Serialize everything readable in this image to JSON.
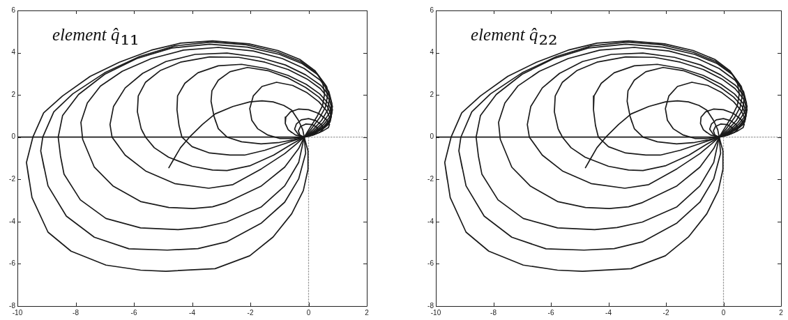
{
  "chart_data": [
    {
      "type": "line",
      "title": "element q̂₁₁",
      "xlim": [
        -10,
        2
      ],
      "xticks": [
        -10,
        -8,
        -6,
        -4,
        -2,
        0,
        2
      ],
      "ylim": [
        -8,
        6
      ],
      "yticks": [
        -8,
        -6,
        -4,
        -2,
        0,
        2,
        4,
        6
      ],
      "grid": false,
      "legend": false,
      "marker": "none",
      "line_style": "solid",
      "series": [
        {
          "color": "#1a1a1a",
          "x": [
            -9.69,
            -9.5,
            -8.95,
            -8.16,
            -6.96,
            -5.77,
            -4.9,
            -3.21,
            -2.02,
            -1.22,
            -0.58,
            -0.18,
            -0.02,
            -0.02,
            -0.15,
            0.05,
            0.3,
            0.48,
            0.55,
            0.48,
            0.22,
            -0.3,
            -1.05,
            -2.05,
            -3.3,
            -4.4,
            -5.4,
            -6.5,
            -7.5,
            -8.45,
            -9.1,
            -9.47,
            -9.69,
            -9.6
          ],
          "values": [
            -1.2,
            -2.86,
            -4.5,
            -5.4,
            -6.06,
            -6.3,
            -6.35,
            -6.23,
            -5.62,
            -4.73,
            -3.63,
            -2.53,
            -1.53,
            -0.65,
            0,
            0.45,
            1.0,
            1.5,
            2.05,
            2.6,
            3.15,
            3.68,
            4.1,
            4.42,
            4.56,
            4.45,
            4.12,
            3.55,
            2.88,
            1.95,
            1.15,
            0,
            -1.2,
            -2.03
          ]
        },
        {
          "color": "#1a1a1a",
          "x": [
            -9.2,
            -8.95,
            -8.32,
            -7.36,
            -6.17,
            -4.85,
            -3.8,
            -2.82,
            -1.62,
            -0.82,
            -0.34,
            -0.1,
            -0.15,
            0.1,
            0.38,
            0.58,
            0.65,
            0.56,
            0.27,
            -0.27,
            -1.05,
            -2.15,
            -3.35,
            -4.6,
            -5.8,
            -7.0,
            -8.1,
            -8.75,
            -9.13,
            -9.2,
            -9.08
          ],
          "values": [
            -0.65,
            -2.31,
            -3.74,
            -4.74,
            -5.29,
            -5.35,
            -5.28,
            -4.96,
            -4.07,
            -3.08,
            -1.98,
            -0.76,
            0,
            0.4,
            0.92,
            1.42,
            1.95,
            2.5,
            3.05,
            3.58,
            4.02,
            4.38,
            4.5,
            4.32,
            3.82,
            3.05,
            2.05,
            1.2,
            0,
            -0.65,
            -1.48
          ]
        },
        {
          "color": "#1a1a1a",
          "x": [
            -8.6,
            -8.52,
            -8.4,
            -7.84,
            -6.96,
            -5.77,
            -4.48,
            -3.7,
            -2.82,
            -1.62,
            -0.82,
            -0.34,
            -0.15,
            0.15,
            0.45,
            0.66,
            0.72,
            0.62,
            0.32,
            -0.22,
            -1.0,
            -2.1,
            -3.4,
            -4.7,
            -5.9,
            -7.0,
            -7.9,
            -8.45,
            -8.6,
            -8.52,
            -8.46
          ],
          "values": [
            0,
            -0.9,
            -1.75,
            -2.97,
            -3.85,
            -4.3,
            -4.38,
            -4.28,
            -4.02,
            -3.3,
            -2.31,
            -1.2,
            0,
            0.35,
            0.8,
            1.3,
            1.85,
            2.4,
            2.95,
            3.48,
            3.92,
            4.26,
            4.4,
            4.22,
            3.72,
            2.98,
            2.02,
            1.02,
            0,
            -0.9,
            -1.32
          ]
        },
        {
          "color": "#1a1a1a",
          "x": [
            -7.82,
            -7.76,
            -7.36,
            -6.72,
            -5.77,
            -4.8,
            -3.97,
            -3.3,
            -2.82,
            -1.62,
            -0.82,
            -0.34,
            -0.15,
            0.18,
            0.5,
            0.72,
            0.8,
            0.7,
            0.4,
            -0.15,
            -0.9,
            -1.9,
            -3.1,
            -4.3,
            -5.4,
            -6.4,
            -7.15,
            -7.6,
            -7.82,
            -7.76,
            -7.56
          ],
          "values": [
            0.7,
            -0.1,
            -1.42,
            -2.31,
            -3.05,
            -3.33,
            -3.38,
            -3.3,
            -3.1,
            -2.31,
            -1.42,
            -0.54,
            0,
            0.3,
            0.7,
            1.15,
            1.6,
            2.15,
            2.7,
            3.25,
            3.72,
            4.08,
            4.25,
            4.12,
            3.72,
            3.12,
            2.42,
            1.62,
            0.7,
            -0.1,
            -0.76
          ]
        },
        {
          "color": "#1a1a1a",
          "x": [
            -6.82,
            -6.75,
            -6.3,
            -5.6,
            -4.6,
            -3.43,
            -2.6,
            -1.62,
            -0.82,
            -0.4,
            -0.15,
            0.2,
            0.52,
            0.75,
            0.82,
            0.72,
            0.42,
            -0.1,
            -0.8,
            -1.7,
            -2.8,
            -3.9,
            -4.9,
            -5.7,
            -6.3,
            -6.7,
            -6.82,
            -6.75,
            -6.52
          ],
          "values": [
            0.6,
            0,
            -0.85,
            -1.6,
            -2.2,
            -2.42,
            -2.25,
            -1.5,
            -0.78,
            -0.3,
            0,
            0.26,
            0.6,
            1.0,
            1.45,
            1.95,
            2.45,
            2.95,
            3.42,
            3.78,
            3.98,
            3.92,
            3.58,
            3.02,
            2.33,
            1.45,
            0.6,
            0,
            -0.43
          ]
        },
        {
          "color": "#1a1a1a",
          "x": [
            -5.88,
            -5.75,
            -5.6,
            -5.3,
            -4.81,
            -4.0,
            -3.3,
            -2.8,
            -2.0,
            -1.2,
            -0.6,
            -0.15,
            0.2,
            0.55,
            0.76,
            0.82,
            0.7,
            0.4,
            -0.05,
            -0.7,
            -1.5,
            -2.4,
            -3.4,
            -4.4,
            -5.1,
            -5.6,
            -5.85,
            -5.88,
            -5.75,
            -5.68
          ],
          "values": [
            1.2,
            0.4,
            0,
            -0.5,
            -0.95,
            -1.38,
            -1.56,
            -1.58,
            -1.35,
            -0.85,
            -0.35,
            0,
            0.24,
            0.54,
            0.9,
            1.3,
            1.8,
            2.3,
            2.75,
            3.2,
            3.55,
            3.78,
            3.8,
            3.55,
            3.15,
            2.6,
            1.95,
            1.2,
            0.4,
            0.2
          ]
        },
        {
          "color": "#1a1a1a",
          "x": [
            -4.52,
            -4.45,
            -4.35,
            -4.0,
            -3.4,
            -2.7,
            -2.2,
            -1.5,
            -0.8,
            -0.15,
            0.2,
            0.55,
            0.75,
            0.8,
            0.68,
            0.38,
            -0.08,
            -0.7,
            -1.45,
            -2.3,
            -3.1,
            -3.8,
            -4.25,
            -4.5,
            -4.52,
            -4.45,
            -4.4
          ],
          "values": [
            1.3,
            0.55,
            0,
            -0.45,
            -0.75,
            -0.85,
            -0.85,
            -0.62,
            -0.3,
            0,
            0.22,
            0.5,
            0.82,
            1.15,
            1.6,
            2.05,
            2.5,
            2.92,
            3.25,
            3.45,
            3.38,
            3.05,
            2.55,
            1.95,
            1.3,
            0.55,
            0.28
          ]
        },
        {
          "color": "#1a1a1a",
          "x": [
            -3.35,
            -3.25,
            -3.1,
            -2.8,
            -2.3,
            -1.63,
            -1.0,
            -0.5,
            -0.15,
            0.2,
            0.55,
            0.74,
            0.78,
            0.65,
            0.35,
            -0.1,
            -0.7,
            -1.4,
            -2.1,
            -2.7,
            -3.1,
            -3.32,
            -3.35,
            -3.25,
            -3.18
          ],
          "values": [
            1.7,
            1.0,
            0.4,
            0,
            -0.22,
            -0.32,
            -0.25,
            -0.12,
            0,
            0.2,
            0.45,
            0.72,
            1.0,
            1.45,
            1.9,
            2.35,
            2.8,
            3.15,
            3.3,
            3.1,
            2.7,
            2.2,
            1.7,
            1.0,
            0.7
          ]
        },
        {
          "color": "#1a1a1a",
          "x": [
            -2.02,
            -1.95,
            -1.75,
            -1.4,
            -1.0,
            -0.6,
            -0.15,
            0.2,
            0.5,
            0.7,
            0.75,
            0.62,
            0.35,
            -0.05,
            -0.55,
            -1.1,
            -1.6,
            -1.9,
            -2.02,
            -1.95,
            -1.85
          ],
          "values": [
            1.35,
            0.8,
            0.4,
            0.1,
            -0.06,
            -0.06,
            0,
            0.18,
            0.4,
            0.62,
            0.85,
            1.25,
            1.68,
            2.1,
            2.45,
            2.6,
            2.4,
            1.95,
            1.35,
            0.8,
            0.6
          ]
        },
        {
          "color": "#1a1a1a",
          "x": [
            -0.8,
            -0.7,
            -0.45,
            -0.15,
            0.2,
            0.5,
            0.68,
            0.72,
            0.6,
            0.35,
            0,
            -0.35,
            -0.62,
            -0.78,
            -0.8,
            -0.7,
            -0.58
          ],
          "values": [
            0.65,
            0.35,
            0.1,
            0,
            0.12,
            0.3,
            0.45,
            0.6,
            0.85,
            1.12,
            1.3,
            1.33,
            1.2,
            0.95,
            0.65,
            0.35,
            0.22
          ]
        },
        {
          "color": "#1a1a1a",
          "x": [
            -0.48,
            -0.35,
            -0.15,
            0.15,
            0.38,
            0.5,
            0.45,
            0.25,
            0,
            -0.25,
            -0.42,
            -0.48,
            -0.35
          ],
          "values": [
            0.38,
            0.12,
            0,
            0.1,
            0.22,
            0.38,
            0.58,
            0.78,
            0.88,
            0.82,
            0.62,
            0.38,
            0.12
          ]
        },
        {
          "color": "#1a1a1a",
          "x": [
            -0.35,
            -0.3,
            -0.15,
            0.05,
            0.22,
            0.32,
            0.3,
            0.12,
            -0.1,
            -0.28,
            -0.35,
            -0.3,
            -0.15
          ],
          "values": [
            0.3,
            0.1,
            0,
            0.06,
            0.15,
            0.28,
            0.45,
            0.6,
            0.62,
            0.5,
            0.3,
            0.1,
            0
          ]
        },
        {
          "color": "#1a1a1a",
          "x": [
            -4.8,
            -4.65,
            -4.4,
            -4.09,
            -3.65,
            -3.21,
            -2.6,
            -2.02,
            -1.6,
            -1.22,
            -0.85,
            -0.58,
            -0.35,
            -0.2,
            -0.15
          ],
          "values": [
            -1.45,
            -1.09,
            -0.5,
            0,
            0.6,
            1.1,
            1.45,
            1.67,
            1.72,
            1.67,
            1.5,
            1.28,
            0.8,
            0.35,
            0
          ]
        },
        {
          "color": "#1a1a1a",
          "x": [
            -10,
            -0.15
          ],
          "values": [
            0,
            0
          ]
        },
        {
          "color": "#9a9a9a",
          "line_style": "dotted",
          "x": [
            0,
            2
          ],
          "values": [
            0,
            0
          ]
        },
        {
          "color": "#9a9a9a",
          "line_style": "dotted",
          "x": [
            0,
            0
          ],
          "values": [
            0,
            -8
          ]
        }
      ]
    },
    {
      "type": "line",
      "title": "element q̂₂₂",
      "xlim": [
        -10,
        2
      ],
      "xticks": [
        -10,
        -8,
        -6,
        -4,
        -2,
        0,
        2
      ],
      "ylim": [
        -8,
        6
      ],
      "yticks": [
        -8,
        -6,
        -4,
        -2,
        0,
        2,
        4,
        6
      ],
      "grid": false,
      "legend": false,
      "marker": "none",
      "line_style": "solid",
      "series": [
        {
          "color": "#1a1a1a",
          "x": [
            -9.69,
            -9.5,
            -8.95,
            -8.16,
            -6.96,
            -5.77,
            -4.9,
            -3.21,
            -2.02,
            -1.22,
            -0.58,
            -0.18,
            -0.02,
            -0.02,
            -0.15,
            0.05,
            0.3,
            0.48,
            0.55,
            0.48,
            0.22,
            -0.3,
            -1.05,
            -2.05,
            -3.3,
            -4.4,
            -5.4,
            -6.5,
            -7.5,
            -8.45,
            -9.1,
            -9.47,
            -9.69,
            -9.6
          ],
          "values": [
            -1.2,
            -2.86,
            -4.5,
            -5.4,
            -6.06,
            -6.3,
            -6.35,
            -6.23,
            -5.62,
            -4.73,
            -3.63,
            -2.53,
            -1.53,
            -0.65,
            0,
            0.45,
            1.0,
            1.5,
            2.05,
            2.6,
            3.15,
            3.68,
            4.1,
            4.42,
            4.56,
            4.45,
            4.12,
            3.55,
            2.88,
            1.95,
            1.15,
            0,
            -1.2,
            -2.03
          ]
        },
        {
          "color": "#1a1a1a",
          "x": [
            -9.2,
            -8.95,
            -8.32,
            -7.36,
            -6.17,
            -4.85,
            -3.8,
            -2.82,
            -1.62,
            -0.82,
            -0.34,
            -0.1,
            -0.15,
            0.1,
            0.38,
            0.58,
            0.65,
            0.56,
            0.27,
            -0.27,
            -1.05,
            -2.15,
            -3.35,
            -4.6,
            -5.8,
            -7.0,
            -8.1,
            -8.75,
            -9.13,
            -9.2,
            -9.08
          ],
          "values": [
            -0.65,
            -2.31,
            -3.74,
            -4.74,
            -5.29,
            -5.35,
            -5.28,
            -4.96,
            -4.07,
            -3.08,
            -1.98,
            -0.76,
            0,
            0.4,
            0.92,
            1.42,
            1.95,
            2.5,
            3.05,
            3.58,
            4.02,
            4.38,
            4.5,
            4.32,
            3.82,
            3.05,
            2.05,
            1.2,
            0,
            -0.65,
            -1.48
          ]
        },
        {
          "color": "#1a1a1a",
          "x": [
            -8.6,
            -8.52,
            -8.4,
            -7.84,
            -6.96,
            -5.77,
            -4.48,
            -3.7,
            -2.82,
            -1.62,
            -0.82,
            -0.34,
            -0.15,
            0.15,
            0.45,
            0.66,
            0.72,
            0.62,
            0.32,
            -0.22,
            -1.0,
            -2.1,
            -3.4,
            -4.7,
            -5.9,
            -7.0,
            -7.9,
            -8.45,
            -8.6,
            -8.52,
            -8.46
          ],
          "values": [
            0,
            -0.9,
            -1.75,
            -2.97,
            -3.85,
            -4.3,
            -4.38,
            -4.28,
            -4.02,
            -3.3,
            -2.31,
            -1.2,
            0,
            0.35,
            0.8,
            1.3,
            1.85,
            2.4,
            2.95,
            3.48,
            3.92,
            4.26,
            4.4,
            4.22,
            3.72,
            2.98,
            2.02,
            1.02,
            0,
            -0.9,
            -1.32
          ]
        },
        {
          "color": "#1a1a1a",
          "x": [
            -7.82,
            -7.76,
            -7.36,
            -6.72,
            -5.77,
            -4.8,
            -3.97,
            -3.3,
            -2.82,
            -1.62,
            -0.82,
            -0.34,
            -0.15,
            0.18,
            0.5,
            0.72,
            0.8,
            0.7,
            0.4,
            -0.15,
            -0.9,
            -1.9,
            -3.1,
            -4.3,
            -5.4,
            -6.4,
            -7.15,
            -7.6,
            -7.82,
            -7.76,
            -7.56
          ],
          "values": [
            0.7,
            -0.1,
            -1.42,
            -2.31,
            -3.05,
            -3.33,
            -3.38,
            -3.3,
            -3.1,
            -2.31,
            -1.42,
            -0.54,
            0,
            0.3,
            0.7,
            1.15,
            1.6,
            2.15,
            2.7,
            3.25,
            3.72,
            4.08,
            4.25,
            4.12,
            3.72,
            3.12,
            2.42,
            1.62,
            0.7,
            -0.1,
            -0.76
          ]
        },
        {
          "color": "#1a1a1a",
          "x": [
            -6.82,
            -6.75,
            -6.3,
            -5.6,
            -4.6,
            -3.43,
            -2.6,
            -1.62,
            -0.82,
            -0.4,
            -0.15,
            0.2,
            0.52,
            0.75,
            0.82,
            0.72,
            0.42,
            -0.1,
            -0.8,
            -1.7,
            -2.8,
            -3.9,
            -4.9,
            -5.7,
            -6.3,
            -6.7,
            -6.82,
            -6.75,
            -6.52
          ],
          "values": [
            0.6,
            0,
            -0.85,
            -1.6,
            -2.2,
            -2.42,
            -2.25,
            -1.5,
            -0.78,
            -0.3,
            0,
            0.26,
            0.6,
            1.0,
            1.45,
            1.95,
            2.45,
            2.95,
            3.42,
            3.78,
            3.98,
            3.92,
            3.58,
            3.02,
            2.33,
            1.45,
            0.6,
            0,
            -0.43
          ]
        },
        {
          "color": "#1a1a1a",
          "x": [
            -5.88,
            -5.75,
            -5.6,
            -5.3,
            -4.81,
            -4.0,
            -3.3,
            -2.8,
            -2.0,
            -1.2,
            -0.6,
            -0.15,
            0.2,
            0.55,
            0.76,
            0.82,
            0.7,
            0.4,
            -0.05,
            -0.7,
            -1.5,
            -2.4,
            -3.4,
            -4.4,
            -5.1,
            -5.6,
            -5.85,
            -5.88,
            -5.75,
            -5.68
          ],
          "values": [
            1.2,
            0.4,
            0,
            -0.5,
            -0.95,
            -1.38,
            -1.56,
            -1.58,
            -1.35,
            -0.85,
            -0.35,
            0,
            0.24,
            0.54,
            0.9,
            1.3,
            1.8,
            2.3,
            2.75,
            3.2,
            3.55,
            3.78,
            3.8,
            3.55,
            3.15,
            2.6,
            1.95,
            1.2,
            0.4,
            0.2
          ]
        },
        {
          "color": "#1a1a1a",
          "x": [
            -4.52,
            -4.45,
            -4.35,
            -4.0,
            -3.4,
            -2.7,
            -2.2,
            -1.5,
            -0.8,
            -0.15,
            0.2,
            0.55,
            0.75,
            0.8,
            0.68,
            0.38,
            -0.08,
            -0.7,
            -1.45,
            -2.3,
            -3.1,
            -3.8,
            -4.25,
            -4.5,
            -4.52,
            -4.45,
            -4.4
          ],
          "values": [
            1.3,
            0.55,
            0,
            -0.45,
            -0.75,
            -0.85,
            -0.85,
            -0.62,
            -0.3,
            0,
            0.22,
            0.5,
            0.82,
            1.15,
            1.6,
            2.05,
            2.5,
            2.92,
            3.25,
            3.45,
            3.38,
            3.05,
            2.55,
            1.95,
            1.3,
            0.55,
            0.28
          ]
        },
        {
          "color": "#1a1a1a",
          "x": [
            -3.35,
            -3.25,
            -3.1,
            -2.8,
            -2.3,
            -1.63,
            -1.0,
            -0.5,
            -0.15,
            0.2,
            0.55,
            0.74,
            0.78,
            0.65,
            0.35,
            -0.1,
            -0.7,
            -1.4,
            -2.1,
            -2.7,
            -3.1,
            -3.32,
            -3.35,
            -3.25,
            -3.18
          ],
          "values": [
            1.7,
            1.0,
            0.4,
            0,
            -0.22,
            -0.32,
            -0.25,
            -0.12,
            0,
            0.2,
            0.45,
            0.72,
            1.0,
            1.45,
            1.9,
            2.35,
            2.8,
            3.15,
            3.3,
            3.1,
            2.7,
            2.2,
            1.7,
            1.0,
            0.7
          ]
        },
        {
          "color": "#1a1a1a",
          "x": [
            -2.02,
            -1.95,
            -1.75,
            -1.4,
            -1.0,
            -0.6,
            -0.15,
            0.2,
            0.5,
            0.7,
            0.75,
            0.62,
            0.35,
            -0.05,
            -0.55,
            -1.1,
            -1.6,
            -1.9,
            -2.02,
            -1.95,
            -1.85
          ],
          "values": [
            1.35,
            0.8,
            0.4,
            0.1,
            -0.06,
            -0.06,
            0,
            0.18,
            0.4,
            0.62,
            0.85,
            1.25,
            1.68,
            2.1,
            2.45,
            2.6,
            2.4,
            1.95,
            1.35,
            0.8,
            0.6
          ]
        },
        {
          "color": "#1a1a1a",
          "x": [
            -0.8,
            -0.7,
            -0.45,
            -0.15,
            0.2,
            0.5,
            0.68,
            0.72,
            0.6,
            0.35,
            0,
            -0.35,
            -0.62,
            -0.78,
            -0.8,
            -0.7,
            -0.58
          ],
          "values": [
            0.65,
            0.35,
            0.1,
            0,
            0.12,
            0.3,
            0.45,
            0.6,
            0.85,
            1.12,
            1.3,
            1.33,
            1.2,
            0.95,
            0.65,
            0.35,
            0.22
          ]
        },
        {
          "color": "#1a1a1a",
          "x": [
            -0.48,
            -0.35,
            -0.15,
            0.15,
            0.38,
            0.5,
            0.45,
            0.25,
            0,
            -0.25,
            -0.42,
            -0.48,
            -0.35
          ],
          "values": [
            0.38,
            0.12,
            0,
            0.1,
            0.22,
            0.38,
            0.58,
            0.78,
            0.88,
            0.82,
            0.62,
            0.38,
            0.12
          ]
        },
        {
          "color": "#1a1a1a",
          "x": [
            -0.35,
            -0.3,
            -0.15,
            0.05,
            0.22,
            0.32,
            0.3,
            0.12,
            -0.1,
            -0.28,
            -0.35,
            -0.3,
            -0.15
          ],
          "values": [
            0.3,
            0.1,
            0,
            0.06,
            0.15,
            0.28,
            0.45,
            0.6,
            0.62,
            0.5,
            0.3,
            0.1,
            0
          ]
        },
        {
          "color": "#1a1a1a",
          "x": [
            -4.8,
            -4.65,
            -4.4,
            -4.09,
            -3.65,
            -3.21,
            -2.6,
            -2.02,
            -1.6,
            -1.22,
            -0.85,
            -0.58,
            -0.35,
            -0.2,
            -0.15
          ],
          "values": [
            -1.45,
            -1.09,
            -0.5,
            0,
            0.6,
            1.1,
            1.45,
            1.67,
            1.72,
            1.67,
            1.5,
            1.28,
            0.8,
            0.35,
            0
          ]
        },
        {
          "color": "#1a1a1a",
          "x": [
            -10,
            -0.15
          ],
          "values": [
            0,
            0
          ]
        },
        {
          "color": "#9a9a9a",
          "line_style": "dotted",
          "x": [
            0,
            2
          ],
          "values": [
            0,
            0
          ]
        },
        {
          "color": "#9a9a9a",
          "line_style": "dotted",
          "x": [
            0,
            0
          ],
          "values": [
            0,
            -8
          ]
        }
      ]
    }
  ]
}
